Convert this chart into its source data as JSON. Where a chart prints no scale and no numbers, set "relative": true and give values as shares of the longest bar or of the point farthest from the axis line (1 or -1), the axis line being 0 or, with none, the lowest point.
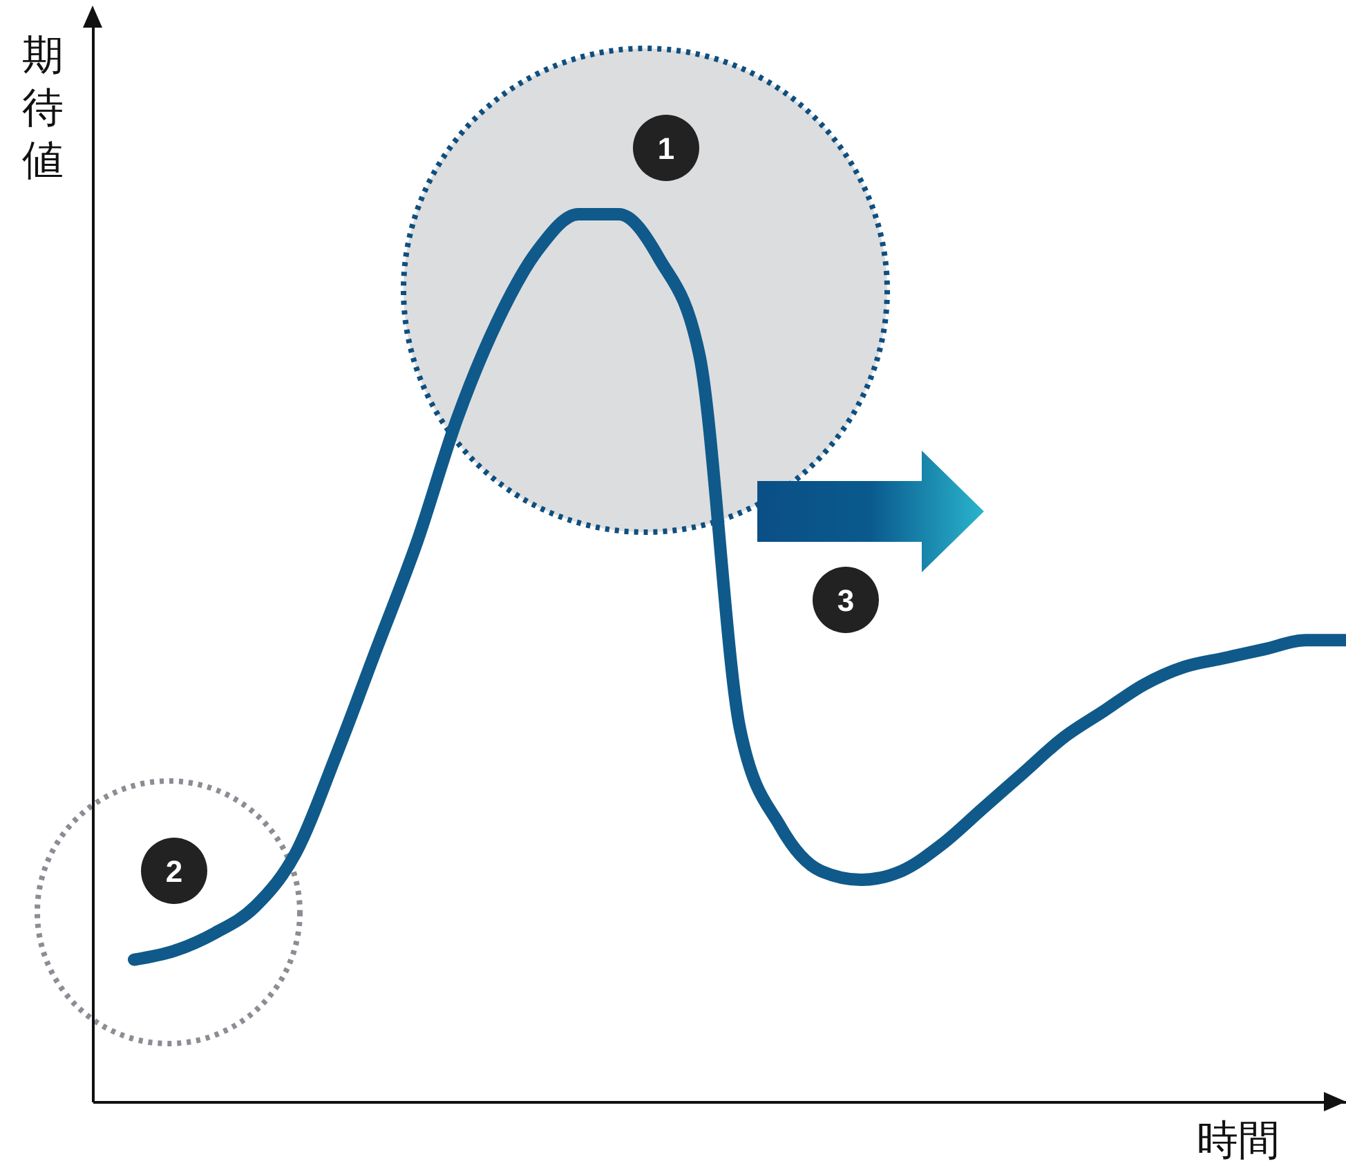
{
  "chart_data": {
    "type": "line",
    "relative": true,
    "xlabel": "時間",
    "ylabel": "期待値",
    "categories": [
      null,
      null,
      null,
      null,
      null,
      null,
      null,
      null,
      null,
      null,
      null,
      null,
      null,
      null,
      null,
      null,
      null,
      null,
      null,
      null,
      null,
      null,
      null,
      null,
      null,
      null,
      null,
      null,
      null,
      null,
      null
    ],
    "series": [
      {
        "color": "#0f5a8a",
        "values": [
          0.16,
          0.17,
          0.19,
          0.22,
          0.28,
          0.39,
          0.51,
          0.63,
          0.77,
          0.88,
          0.96,
          1.0,
          1.0,
          0.95,
          0.84,
          0.42,
          0.31,
          0.26,
          0.25,
          0.26,
          0.29,
          0.33,
          0.37,
          0.41,
          0.44,
          0.47,
          0.49,
          0.5,
          0.51,
          0.52,
          0.52
        ]
      }
    ],
    "annotations": [
      "1",
      "2",
      "3"
    ],
    "grid": false
  }
}
